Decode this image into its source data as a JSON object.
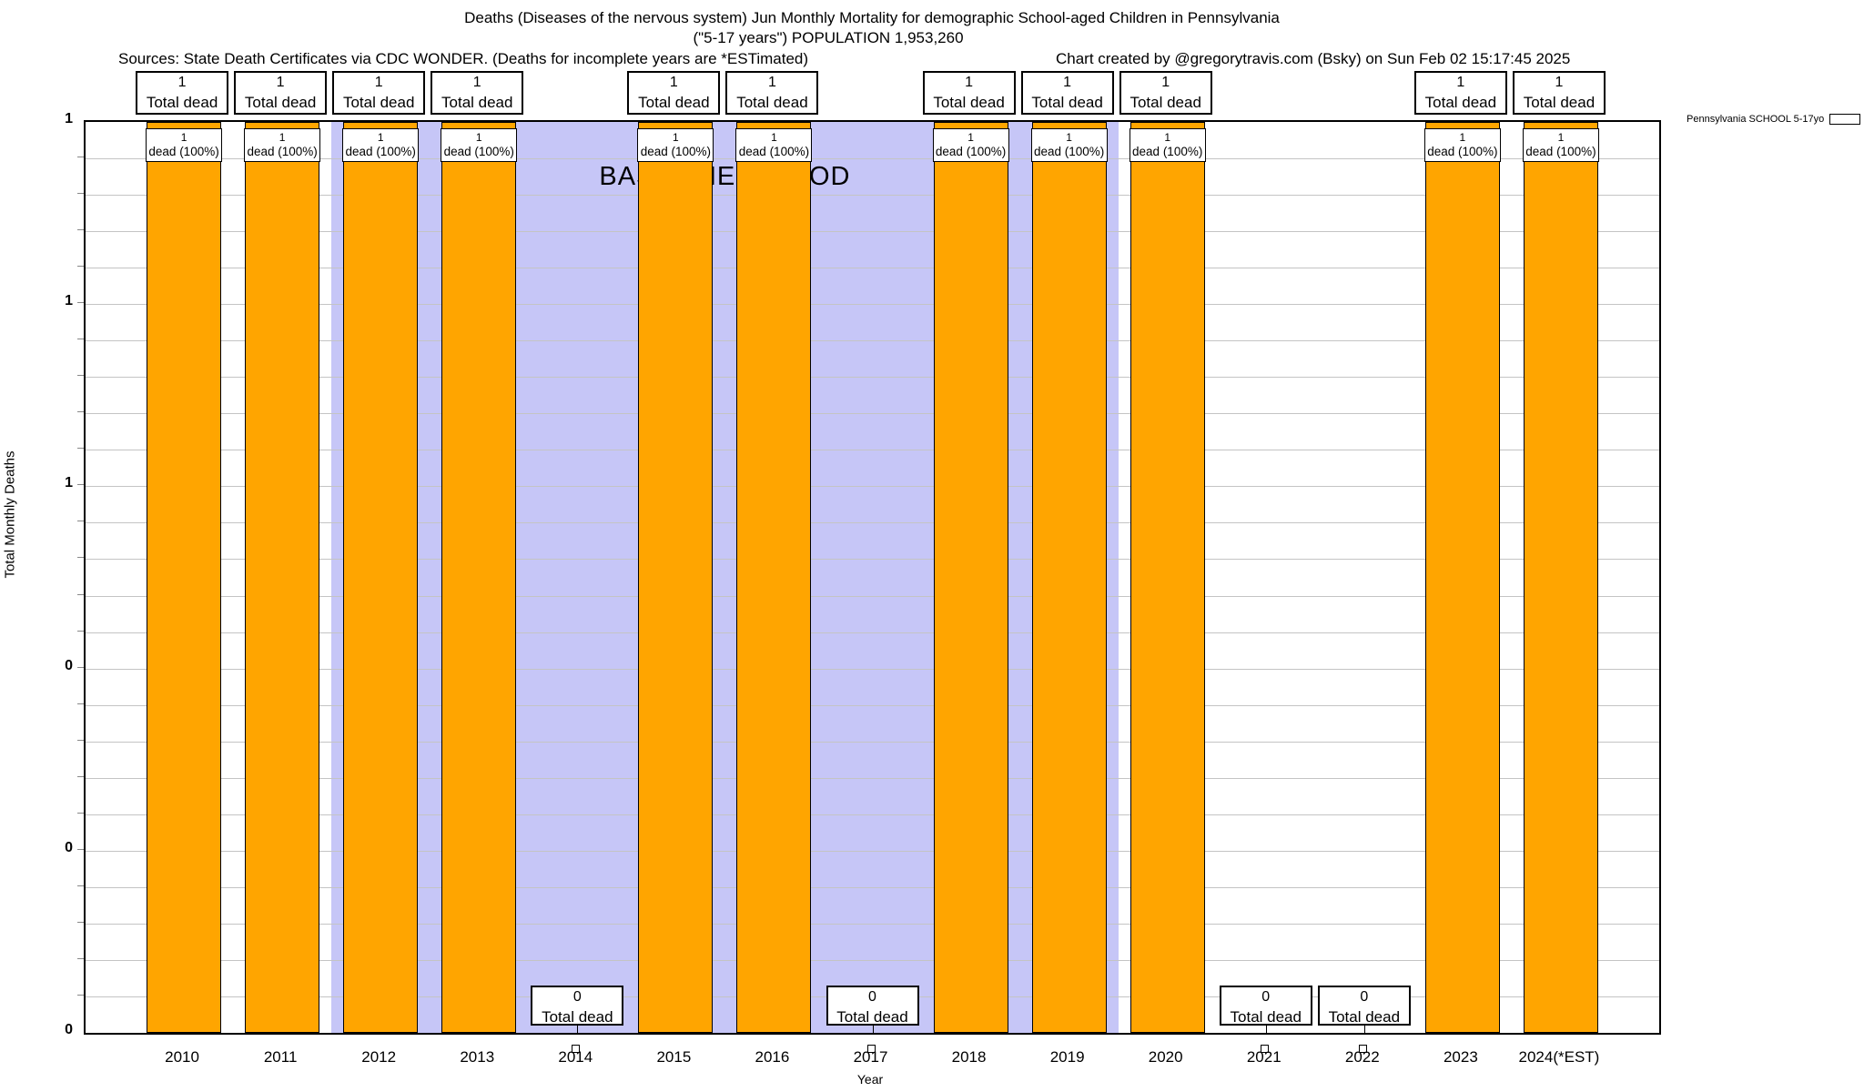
{
  "title": {
    "line1": "Deaths (Diseases of the nervous system) Jun Monthly Mortality for demographic School-aged Children in Pennsylvania",
    "line2": "(\"5-17 years\") POPULATION 1,953,260",
    "sources": "Sources: State Death Certificates via CDC WONDER. (Deaths for incomplete years are *ESTimated)",
    "credit": "Chart created by @gregorytravis.com (Bsky) on Sun Feb 02 15:17:45 2025"
  },
  "legend": {
    "label": "Pennsylvania SCHOOL 5-17yo",
    "swatch_color": "#FFA500"
  },
  "axes": {
    "ylabel": "Total Monthly Deaths",
    "xlabel": "Year",
    "ytick_labels": [
      "1",
      "1",
      "1",
      "0",
      "0",
      "0"
    ]
  },
  "annotations": {
    "baseline_label": "BASELINE PERIOD"
  },
  "colors": {
    "bar": "#FFA500",
    "baseline_band": "#C6C6F7",
    "grid": "#C4C4C4"
  },
  "years": [
    {
      "label": "2010",
      "value": 1,
      "total": "1",
      "top_caption": "Total dead",
      "bar_count": "1",
      "bar_caption": "dead (100%)"
    },
    {
      "label": "2011",
      "value": 1,
      "total": "1",
      "top_caption": "Total dead",
      "bar_count": "1",
      "bar_caption": "dead (100%)"
    },
    {
      "label": "2012",
      "value": 1,
      "total": "1",
      "top_caption": "Total dead",
      "bar_count": "1",
      "bar_caption": "dead (100%)"
    },
    {
      "label": "2013",
      "value": 1,
      "total": "1",
      "top_caption": "Total dead",
      "bar_count": "1",
      "bar_caption": "dead (100%)"
    },
    {
      "label": "2014",
      "value": 0,
      "total": "0",
      "bottom_caption": "Total dead"
    },
    {
      "label": "2015",
      "value": 1,
      "total": "1",
      "top_caption": "Total dead",
      "bar_count": "1",
      "bar_caption": "dead (100%)"
    },
    {
      "label": "2016",
      "value": 1,
      "total": "1",
      "top_caption": "Total dead",
      "bar_count": "1",
      "bar_caption": "dead (100%)"
    },
    {
      "label": "2017",
      "value": 0,
      "total": "0",
      "bottom_caption": "Total dead"
    },
    {
      "label": "2018",
      "value": 1,
      "total": "1",
      "top_caption": "Total dead",
      "bar_count": "1",
      "bar_caption": "dead (100%)"
    },
    {
      "label": "2019",
      "value": 1,
      "total": "1",
      "top_caption": "Total dead",
      "bar_count": "1",
      "bar_caption": "dead (100%)"
    },
    {
      "label": "2020",
      "value": 1,
      "total": "1",
      "top_caption": "Total dead",
      "bar_count": "1",
      "bar_caption": "dead (100%)"
    },
    {
      "label": "2021",
      "value": 0,
      "total": "0",
      "bottom_caption": "Total dead"
    },
    {
      "label": "2022",
      "value": 0,
      "total": "0",
      "bottom_caption": "Total dead"
    },
    {
      "label": "2023",
      "value": 1,
      "total": "1",
      "top_caption": "Total dead",
      "bar_count": "1",
      "bar_caption": "dead (100%)"
    },
    {
      "label": "2024(*EST)",
      "value": 1,
      "total": "1",
      "top_caption": "Total dead",
      "bar_count": "1",
      "bar_caption": "dead (100%)"
    }
  ],
  "chart_data": {
    "type": "bar",
    "categories": [
      "2010",
      "2011",
      "2012",
      "2013",
      "2014",
      "2015",
      "2016",
      "2017",
      "2018",
      "2019",
      "2020",
      "2021",
      "2022",
      "2023",
      "2024(*EST)"
    ],
    "series": [
      {
        "name": "Pennsylvania SCHOOL 5-17yo",
        "values": [
          1,
          1,
          1,
          1,
          0,
          1,
          1,
          0,
          1,
          1,
          1,
          0,
          0,
          1,
          1
        ]
      }
    ],
    "title": "Deaths (Diseases of the nervous system) Jun Monthly Mortality for demographic School-aged Children in Pennsylvania (\"5-17 years\") POPULATION 1,953,260",
    "xlabel": "Year",
    "ylabel": "Total Monthly Deaths",
    "ylim": [
      0,
      1
    ],
    "ytick_values": [
      0,
      0.2,
      0.4,
      0.6,
      0.8,
      1.0
    ],
    "ytick_display": [
      "0",
      "0",
      "0",
      "1",
      "1",
      "1"
    ],
    "grid": true,
    "bar_color": "#FFA500",
    "legend_position": "top-right-outside",
    "annotations": [
      {
        "type": "band",
        "label": "BASELINE PERIOD",
        "x_start": 2011.5,
        "x_end": 2019.5,
        "color": "#C6C6F7"
      }
    ],
    "bar_labels_top": "each bar with value 1 labeled '1 / Total dead' above plot and '1 / dead (100%)' inside bar; value-0 years labeled '0 / Total dead' at plot bottom"
  }
}
